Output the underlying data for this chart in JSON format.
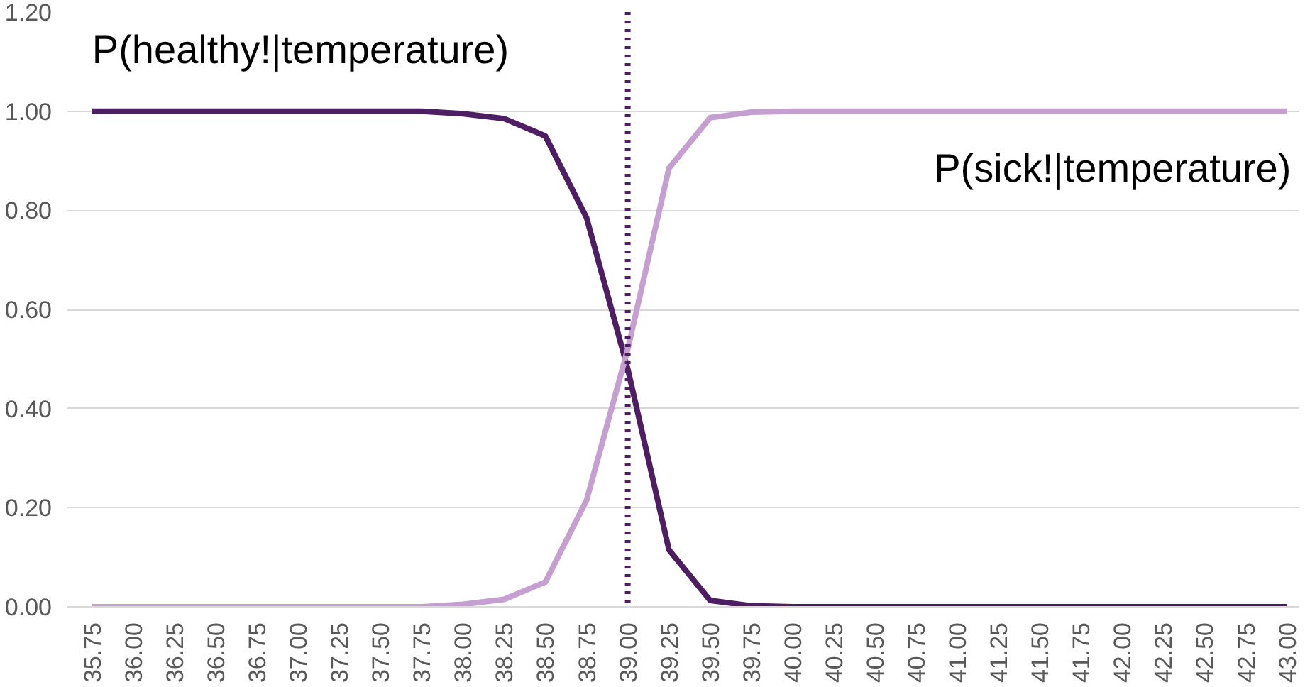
{
  "chart_data": {
    "type": "line",
    "categories": [
      "35.75",
      "36.00",
      "36.25",
      "36.50",
      "36.75",
      "37.00",
      "37.25",
      "37.50",
      "37.75",
      "38.00",
      "38.25",
      "38.50",
      "38.75",
      "39.00",
      "39.25",
      "39.50",
      "39.75",
      "40.00",
      "40.25",
      "40.50",
      "40.75",
      "41.00",
      "41.25",
      "41.50",
      "41.75",
      "42.00",
      "42.25",
      "42.50",
      "42.75",
      "43.00"
    ],
    "series": [
      {
        "color": "#4e1e63",
        "values": [
          1.0,
          1.0,
          1.0,
          1.0,
          1.0,
          1.0,
          1.0,
          1.0,
          1.0,
          0.995,
          0.985,
          0.95,
          0.785,
          0.48,
          0.115,
          0.013,
          0.002,
          0.0,
          0.0,
          0.0,
          0.0,
          0.0,
          0.0,
          0.0,
          0.0,
          0.0,
          0.0,
          0.0,
          0.0,
          0.0
        ]
      },
      {
        "color": "#c59fd0",
        "values": [
          0.0,
          0.0,
          0.0,
          0.0,
          0.0,
          0.0,
          0.0,
          0.0,
          0.0,
          0.005,
          0.015,
          0.05,
          0.215,
          0.52,
          0.885,
          0.987,
          0.998,
          1.0,
          1.0,
          1.0,
          1.0,
          1.0,
          1.0,
          1.0,
          1.0,
          1.0,
          1.0,
          1.0,
          1.0,
          1.0
        ]
      }
    ],
    "ylim": [
      0,
      1.2
    ],
    "yticks": [
      {
        "value": 0,
        "label": "0.00"
      },
      {
        "value": 0.2,
        "label": "0.20"
      },
      {
        "value": 0.4,
        "label": "0.40"
      },
      {
        "value": 0.6,
        "label": "0.60"
      },
      {
        "value": 0.8,
        "label": "0.80"
      },
      {
        "value": 1.0,
        "label": "1.00"
      },
      {
        "value": 1.2,
        "label": "1.20"
      }
    ],
    "grid": "y",
    "marker": "none",
    "line_style": "solid",
    "annotations": [
      "P(healthy!|temperature)",
      "P(sick!|temperature)"
    ],
    "ref_lines": [
      {
        "axis": "x",
        "value": "39.00",
        "color": "#4e1e63",
        "line_style": "dotted"
      }
    ]
  }
}
